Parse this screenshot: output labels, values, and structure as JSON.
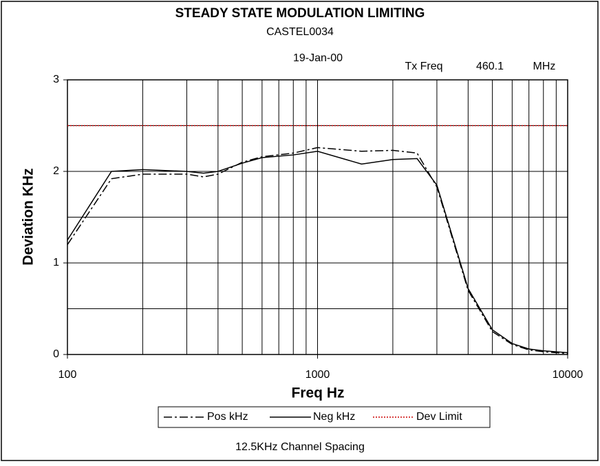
{
  "chart_data": {
    "type": "line",
    "title": "STEADY STATE MODULATION LIMITING",
    "subtitle": "CASTEL0034",
    "annotations": [
      "19-Jan-00",
      "Tx Freq",
      "460.1",
      "MHz"
    ],
    "x_label": "Freq Hz",
    "y_label": "Deviation KHz",
    "footer": "12.5KHz Channel Spacing",
    "x_scale": "log",
    "x": [
      100,
      150,
      200,
      300,
      350,
      400,
      500,
      600,
      800,
      1000,
      1500,
      2000,
      2500,
      3000,
      4000,
      5000,
      6000,
      7000,
      8000,
      10000
    ],
    "series": [
      {
        "name": "Pos kHz",
        "color": "#000000",
        "dash": "12 4 3 4",
        "values": [
          1.2,
          1.92,
          1.97,
          1.97,
          1.94,
          1.97,
          2.1,
          2.16,
          2.2,
          2.26,
          2.22,
          2.23,
          2.2,
          1.83,
          0.7,
          0.25,
          0.11,
          0.05,
          0.03,
          0.01
        ]
      },
      {
        "name": "Neg kHz",
        "color": "#000000",
        "dash": "none",
        "values": [
          1.25,
          2.0,
          2.02,
          2.0,
          1.98,
          2.0,
          2.09,
          2.15,
          2.18,
          2.22,
          2.08,
          2.13,
          2.14,
          1.85,
          0.72,
          0.27,
          0.12,
          0.06,
          0.04,
          0.02
        ]
      },
      {
        "name": "Dev Limit",
        "color": "#cc0000",
        "dash": "2 2",
        "values": [
          2.5,
          2.5,
          2.5,
          2.5,
          2.5,
          2.5,
          2.5,
          2.5,
          2.5,
          2.5,
          2.5,
          2.5,
          2.5,
          2.5,
          2.5,
          2.5,
          2.5,
          2.5,
          2.5,
          2.5
        ]
      }
    ],
    "xlim": [
      100,
      10000
    ],
    "xticks": [
      100,
      1000,
      10000
    ],
    "x_minor_grid": [
      200,
      300,
      400,
      500,
      600,
      700,
      800,
      900,
      2000,
      3000,
      4000,
      5000,
      6000,
      7000,
      8000,
      9000
    ],
    "ylim": [
      0,
      3
    ],
    "yticks": [
      0,
      1,
      2,
      3
    ],
    "y_minor_grid": [
      0.5,
      1.5,
      2.5
    ],
    "grid": true,
    "legend": "bottom"
  }
}
